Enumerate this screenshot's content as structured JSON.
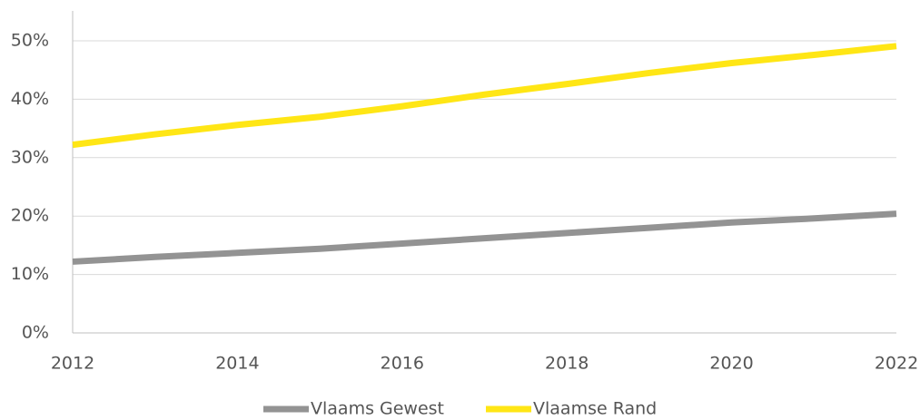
{
  "chart_data": {
    "type": "line",
    "x": [
      2012,
      2013,
      2014,
      2015,
      2016,
      2017,
      2018,
      2019,
      2020,
      2021,
      2022
    ],
    "series": [
      {
        "name": "Vlaams Gewest",
        "color": "#939393",
        "values": [
          12.2,
          13.0,
          13.7,
          14.4,
          15.3,
          16.2,
          17.1,
          18.0,
          18.9,
          19.6,
          20.4
        ]
      },
      {
        "name": "Vlaamse Rand",
        "color": "#ffe615",
        "values": [
          32.2,
          34.0,
          35.6,
          37.0,
          38.8,
          40.8,
          42.6,
          44.5,
          46.2,
          47.6,
          49.1
        ]
      }
    ],
    "xlim": [
      2012,
      2022
    ],
    "xticks": [
      2012,
      2014,
      2016,
      2018,
      2020,
      2022
    ],
    "ylim": [
      0,
      55
    ],
    "yticks": [
      {
        "value": 0,
        "label": "0%"
      },
      {
        "value": 10,
        "label": "10%"
      },
      {
        "value": 20,
        "label": "20%"
      },
      {
        "value": 30,
        "label": "30%"
      },
      {
        "value": 40,
        "label": "40%"
      },
      {
        "value": 50,
        "label": "50%"
      }
    ],
    "grid": true,
    "legend": "bottom"
  }
}
